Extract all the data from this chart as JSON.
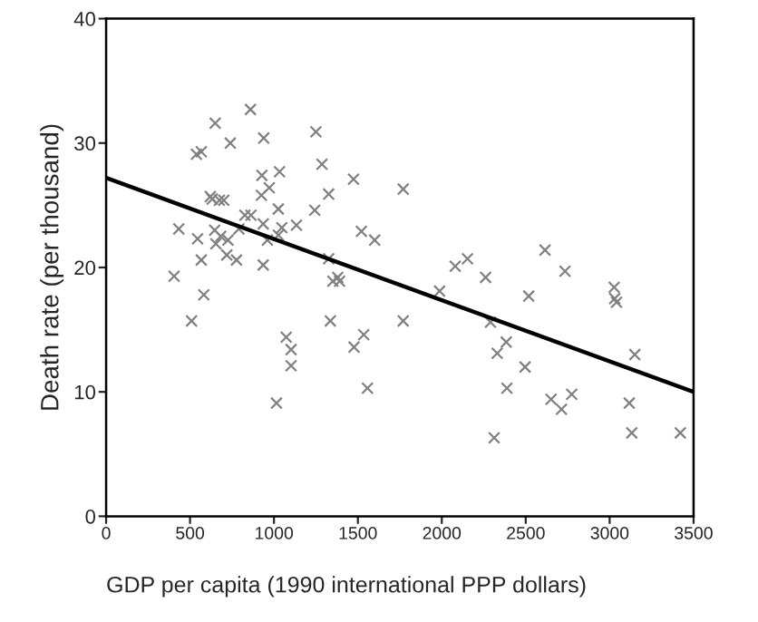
{
  "chart_data": {
    "type": "scatter",
    "xlabel": "GDP per capita (1990 international PPP dollars)",
    "ylabel": "Death rate (per thousand)",
    "xlim": [
      0,
      3500
    ],
    "xticks": [
      0,
      500,
      1000,
      1500,
      2000,
      2500,
      3000,
      3500
    ],
    "ylim": [
      0,
      40
    ],
    "yticks": [
      0,
      10,
      20,
      30,
      40
    ],
    "grid": false,
    "legend": false,
    "marker": "cross",
    "series": [
      {
        "color": "#808080",
        "x": [
          405,
          433,
          509,
          545,
          538,
          567,
          567,
          582,
          621,
          632,
          650,
          647,
          654,
          675,
          701,
          683,
          719,
          726,
          740,
          777,
          791,
          827,
          863,
          860,
          925,
          928,
          939,
          936,
          936,
          972,
          961,
          1026,
          1033,
          1047,
          1026,
          1015,
          1073,
          1102,
          1102,
          1134,
          1243,
          1250,
          1286,
          1326,
          1326,
          1336,
          1351,
          1380,
          1391,
          1474,
          1477,
          1521,
          1535,
          1557,
          1600,
          1770,
          1770,
          1987,
          2080,
          2153,
          2261,
          2290,
          2312,
          2330,
          2384,
          2388,
          2496,
          2518,
          2615,
          2651,
          2713,
          2734,
          2774,
          3027,
          3030,
          3041,
          3117,
          3132,
          3150,
          3421
        ],
        "values": [
          19.3,
          23.1,
          15.7,
          22.3,
          29.1,
          29.3,
          20.6,
          17.8,
          25.7,
          25.5,
          31.6,
          23.0,
          21.9,
          25.4,
          25.4,
          22.5,
          21.0,
          22.2,
          30.0,
          20.6,
          23.1,
          24.2,
          24.2,
          32.7,
          25.8,
          27.4,
          30.4,
          23.5,
          20.2,
          26.4,
          22.2,
          24.7,
          27.7,
          23.2,
          22.6,
          9.1,
          14.4,
          13.4,
          12.1,
          23.4,
          24.6,
          30.9,
          28.3,
          25.9,
          20.7,
          15.7,
          18.9,
          19.2,
          18.9,
          27.1,
          13.6,
          22.9,
          14.6,
          10.3,
          22.2,
          26.3,
          15.7,
          18.1,
          20.1,
          20.7,
          19.2,
          15.6,
          6.3,
          13.1,
          14.0,
          10.3,
          12.0,
          17.7,
          21.4,
          9.4,
          8.6,
          19.7,
          9.8,
          18.4,
          17.5,
          17.2,
          9.1,
          6.7,
          13.0,
          6.7
        ]
      },
      {
        "type": "line",
        "color": "#000000",
        "x": [
          0,
          3500
        ],
        "values": [
          27.2,
          10.0
        ],
        "marker": "none",
        "line_style": "solid"
      }
    ]
  }
}
